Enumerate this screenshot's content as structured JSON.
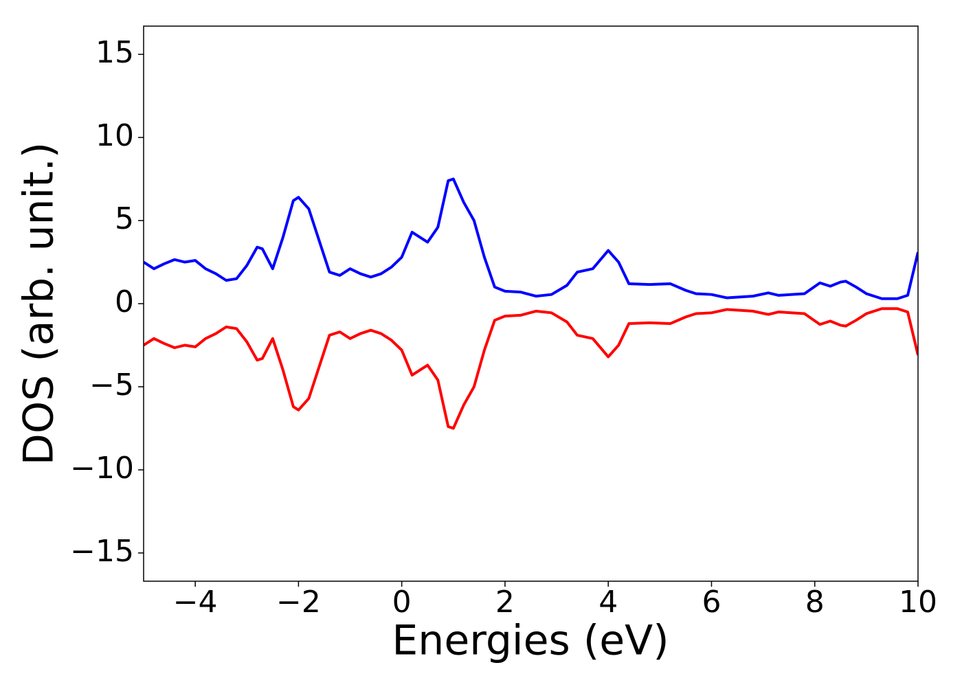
{
  "chart_data": {
    "type": "line",
    "xlabel": "Energies (eV)",
    "ylabel": "DOS (arb. unit.)",
    "x": [
      -5,
      -4.8,
      -4.6,
      -4.4,
      -4.2,
      -4.0,
      -3.8,
      -3.6,
      -3.4,
      -3.2,
      -3.0,
      -2.8,
      -2.7,
      -2.5,
      -2.3,
      -2.1,
      -2.0,
      -1.8,
      -1.6,
      -1.4,
      -1.2,
      -1.0,
      -0.8,
      -0.6,
      -0.4,
      -0.2,
      0,
      0.2,
      0.3,
      0.5,
      0.7,
      0.9,
      1.0,
      1.2,
      1.4,
      1.6,
      1.8,
      2.0,
      2.3,
      2.6,
      2.9,
      3.2,
      3.4,
      3.7,
      4.0,
      4.2,
      4.4,
      4.8,
      5.2,
      5.5,
      5.7,
      6.0,
      6.3,
      6.8,
      7.1,
      7.3,
      7.8,
      8.1,
      8.3,
      8.5,
      8.6,
      8.8,
      9.0,
      9.3,
      9.6,
      9.8,
      10.0
    ],
    "series": [
      {
        "color": "#0000ff",
        "values": [
          2.5,
          2.1,
          2.4,
          2.65,
          2.5,
          2.6,
          2.1,
          1.8,
          1.4,
          1.5,
          2.3,
          3.4,
          3.3,
          2.1,
          4.0,
          6.2,
          6.4,
          5.7,
          3.8,
          1.9,
          1.7,
          2.1,
          1.8,
          1.6,
          1.8,
          2.2,
          2.8,
          4.3,
          4.1,
          3.7,
          4.6,
          7.4,
          7.5,
          6.1,
          5.0,
          2.8,
          1.0,
          0.75,
          0.7,
          0.45,
          0.55,
          1.1,
          1.9,
          2.1,
          3.2,
          2.5,
          1.2,
          1.15,
          1.2,
          0.8,
          0.6,
          0.55,
          0.35,
          0.45,
          0.65,
          0.5,
          0.6,
          1.25,
          1.05,
          1.3,
          1.35,
          1.0,
          0.6,
          0.3,
          0.3,
          0.5,
          3.1
        ]
      },
      {
        "color": "#ff0000",
        "values": [
          -2.5,
          -2.1,
          -2.4,
          -2.65,
          -2.5,
          -2.6,
          -2.1,
          -1.8,
          -1.4,
          -1.5,
          -2.3,
          -3.4,
          -3.3,
          -2.1,
          -4.0,
          -6.2,
          -6.4,
          -5.7,
          -3.8,
          -1.9,
          -1.7,
          -2.1,
          -1.8,
          -1.6,
          -1.8,
          -2.2,
          -2.8,
          -4.3,
          -4.1,
          -3.7,
          -4.6,
          -7.4,
          -7.5,
          -6.1,
          -5.0,
          -2.8,
          -1.0,
          -0.75,
          -0.7,
          -0.45,
          -0.55,
          -1.1,
          -1.9,
          -2.1,
          -3.2,
          -2.5,
          -1.2,
          -1.15,
          -1.2,
          -0.8,
          -0.6,
          -0.55,
          -0.35,
          -0.45,
          -0.65,
          -0.5,
          -0.6,
          -1.25,
          -1.05,
          -1.3,
          -1.35,
          -1.0,
          -0.6,
          -0.3,
          -0.3,
          -0.5,
          -3.1
        ]
      }
    ],
    "xlim": [
      -5,
      10
    ],
    "xticks": [
      {
        "value": -4,
        "label": "−4"
      },
      {
        "value": -2,
        "label": "−2"
      },
      0,
      2,
      4,
      6,
      8,
      10
    ],
    "ylim": [
      -16.7,
      16.7
    ],
    "yticks": [
      {
        "value": -15,
        "label": "−15"
      },
      {
        "value": -10,
        "label": "−10"
      },
      {
        "value": -5,
        "label": "−5"
      },
      0,
      5,
      10,
      15
    ]
  }
}
